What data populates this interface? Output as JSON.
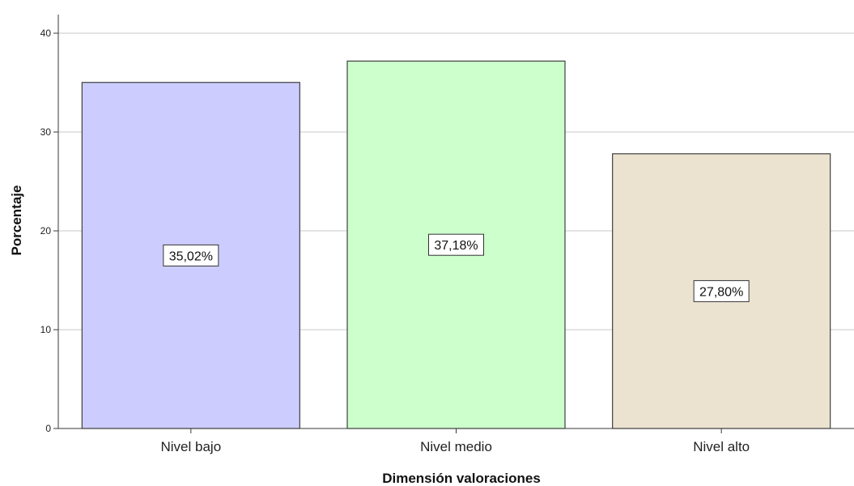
{
  "chart_data": {
    "type": "bar",
    "categories": [
      "Nivel bajo",
      "Nivel medio",
      "Nivel alto"
    ],
    "values": [
      35.02,
      37.18,
      27.8
    ],
    "data_labels": [
      "35,02%",
      "37,18%",
      "27,80%"
    ],
    "colors": [
      "#ccccff",
      "#ccffcc",
      "#ebe3d0"
    ],
    "title": "",
    "xlabel": "Dimensión valoraciones",
    "ylabel": "Porcentaje",
    "ylim": [
      0,
      40
    ],
    "yticks": [
      0,
      10,
      20,
      30,
      40
    ],
    "grid": true,
    "legend": "none"
  }
}
